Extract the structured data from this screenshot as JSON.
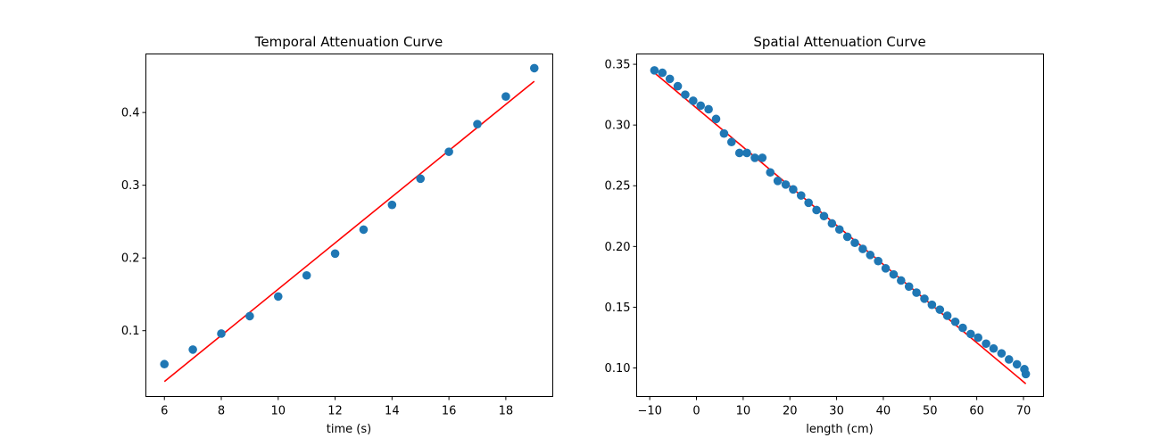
{
  "chart_data": [
    {
      "type": "scatter",
      "title": "Temporal Attenuation Curve",
      "xlabel": "time (s)",
      "ylabel": "",
      "xlim": [
        5.35,
        19.65
      ],
      "ylim": [
        0.0095,
        0.4805
      ],
      "xticks": [
        6,
        8,
        10,
        12,
        14,
        16,
        18
      ],
      "xtick_labels": [
        "6",
        "8",
        "10",
        "12",
        "14",
        "16",
        "18"
      ],
      "yticks": [
        0.1,
        0.2,
        0.3,
        0.4
      ],
      "ytick_labels": [
        "0.1",
        "0.2",
        "0.3",
        "0.4"
      ],
      "grid": false,
      "series": [
        {
          "kind": "points",
          "color": "#1f77b4",
          "x": [
            6,
            7,
            8,
            9,
            10,
            11,
            12,
            13,
            14,
            15,
            16,
            17,
            18,
            19
          ],
          "y": [
            0.054,
            0.074,
            0.096,
            0.12,
            0.147,
            0.176,
            0.206,
            0.239,
            0.273,
            0.309,
            0.346,
            0.384,
            0.422,
            0.461
          ]
        },
        {
          "kind": "line",
          "color": "#ff0000",
          "x": [
            6,
            19
          ],
          "y": [
            0.03,
            0.443
          ]
        }
      ]
    },
    {
      "type": "scatter",
      "title": "Spatial Attenuation Curve",
      "xlabel": "length (cm)",
      "ylabel": "",
      "xlim": [
        -12.8,
        74.3
      ],
      "ylim": [
        0.0765,
        0.3585
      ],
      "xticks": [
        -10,
        0,
        10,
        20,
        30,
        40,
        50,
        60,
        70
      ],
      "xtick_labels": [
        "−10",
        "0",
        "10",
        "20",
        "30",
        "40",
        "50",
        "60",
        "70"
      ],
      "yticks": [
        0.1,
        0.15,
        0.2,
        0.25,
        0.3,
        0.35
      ],
      "ytick_labels": [
        "0.10",
        "0.15",
        "0.20",
        "0.25",
        "0.30",
        "0.35"
      ],
      "grid": false,
      "series": [
        {
          "kind": "points",
          "color": "#1f77b4",
          "x": [
            -9.0,
            -7.3,
            -5.7,
            -4.0,
            -2.4,
            -0.7,
            0.9,
            2.6,
            4.2,
            5.9,
            7.5,
            9.2,
            10.8,
            12.5,
            14.1,
            15.8,
            17.4,
            19.1,
            20.7,
            22.4,
            24.0,
            25.7,
            27.3,
            29.0,
            30.6,
            32.3,
            33.9,
            35.6,
            37.2,
            38.9,
            40.5,
            42.2,
            43.8,
            45.5,
            47.1,
            48.8,
            50.4,
            52.1,
            53.7,
            55.4,
            57.0,
            58.7,
            60.3,
            62.0,
            63.6,
            65.3,
            66.9,
            68.6,
            70.2
          ],
          "y": [
            0.345,
            0.343,
            0.338,
            0.332,
            0.325,
            0.32,
            0.316,
            0.313,
            0.305,
            0.293,
            0.286,
            0.277,
            0.277,
            0.273,
            0.273,
            0.261,
            0.254,
            0.251,
            0.247,
            0.242,
            0.236,
            0.23,
            0.225,
            0.219,
            0.214,
            0.208,
            0.203,
            0.198,
            0.193,
            0.188,
            0.182,
            0.177,
            0.172,
            0.167,
            0.162,
            0.157,
            0.152,
            0.148,
            0.143,
            0.138,
            0.133,
            0.128,
            0.125,
            0.12,
            0.116,
            0.112,
            0.107,
            0.103,
            0.099
          ],
          "note_last_point": {
            "x": 70.5,
            "y": 0.095
          }
        },
        {
          "kind": "line",
          "color": "#ff0000",
          "x": [
            -9.0,
            70.5
          ],
          "y": [
            0.343,
            0.087
          ]
        }
      ]
    }
  ]
}
